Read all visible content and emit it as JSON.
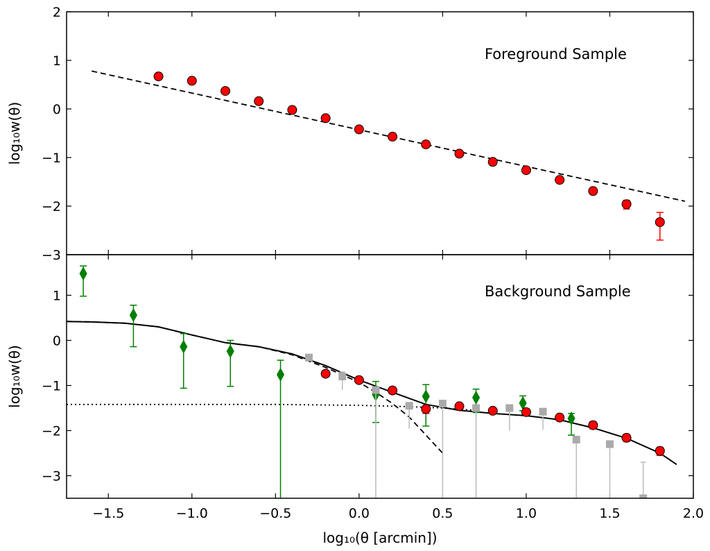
{
  "chart_data": [
    {
      "type": "scatter",
      "panel": "top",
      "annotation": "Foreground Sample",
      "xlabel": "",
      "ylabel": "log₁₀w(θ)",
      "xlim": [
        -1.75,
        2.0
      ],
      "ylim": [
        -3,
        2
      ],
      "xticks": [
        -1.5,
        -1.0,
        -0.5,
        0.0,
        0.5,
        1.0,
        1.5,
        2.0
      ],
      "yticks": [
        2,
        1,
        0,
        -1,
        -2,
        -3
      ],
      "ytick_labels": [
        "2",
        "1",
        "0",
        "−1",
        "−2",
        "−3"
      ],
      "series": [
        {
          "marker": "circle",
          "color": "#ff0000",
          "edge_color": "#000000",
          "errorbar_color": "#ff0000",
          "x": [
            -1.2,
            -1.0,
            -0.8,
            -0.6,
            -0.4,
            -0.2,
            0.0,
            0.2,
            0.4,
            0.6,
            0.8,
            1.0,
            1.2,
            1.4,
            1.6,
            1.8
          ],
          "y": [
            0.67,
            0.58,
            0.37,
            0.16,
            -0.02,
            -0.19,
            -0.42,
            -0.57,
            -0.73,
            -0.92,
            -1.09,
            -1.26,
            -1.46,
            -1.69,
            -1.96,
            -2.33
          ],
          "yerr_low": [
            0.03,
            0.03,
            0.03,
            0.03,
            0.03,
            0.03,
            0.03,
            0.03,
            0.03,
            0.03,
            0.03,
            0.03,
            0.04,
            0.06,
            0.1,
            0.37
          ],
          "yerr_high": [
            0.03,
            0.03,
            0.03,
            0.03,
            0.03,
            0.03,
            0.03,
            0.03,
            0.03,
            0.03,
            0.03,
            0.03,
            0.04,
            0.05,
            0.08,
            0.2
          ]
        }
      ],
      "lines": [
        {
          "style": "dashed",
          "color": "#000000",
          "x": [
            -1.6,
            1.95
          ],
          "y": [
            0.78,
            -1.9
          ]
        }
      ]
    },
    {
      "type": "scatter",
      "panel": "bottom",
      "annotation": "Background Sample",
      "xlabel": "log₁₀(θ [arcmin])",
      "ylabel": "log₁₀w(θ)",
      "xlim": [
        -1.75,
        2.0
      ],
      "ylim": [
        -3.5,
        1.9
      ],
      "xticks": [
        -1.5,
        -1.0,
        -0.5,
        0.0,
        0.5,
        1.0,
        1.5,
        2.0
      ],
      "xtick_labels": [
        "−1.5",
        "−1.0",
        "−0.5",
        "0.0",
        "0.5",
        "1.0",
        "1.5",
        "2.0"
      ],
      "yticks": [
        1,
        0,
        -1,
        -2,
        -3
      ],
      "ytick_labels": [
        "1",
        "0",
        "−1",
        "−2",
        "−3"
      ],
      "series": [
        {
          "marker": "diamond",
          "color": "#007f00",
          "errorbar_color": "#007f00",
          "x": [
            -1.65,
            -1.35,
            -1.05,
            -0.77,
            -0.47,
            0.1,
            0.4,
            0.7,
            0.98,
            1.27
          ],
          "y": [
            1.48,
            0.56,
            -0.14,
            -0.24,
            -0.76,
            -1.2,
            -1.24,
            -1.27,
            -1.39,
            -1.73
          ],
          "yerr_low": [
            0.5,
            0.7,
            0.92,
            0.78,
            3.0,
            0.62,
            0.66,
            0.33,
            0.17,
            0.37
          ],
          "yerr_high": [
            0.17,
            0.22,
            0.29,
            0.24,
            0.32,
            0.29,
            0.26,
            0.19,
            0.16,
            0.11
          ]
        },
        {
          "marker": "square",
          "color": "#aaaaaa",
          "errorbar_color": "#bbbbbb",
          "x": [
            -0.3,
            -0.1,
            0.1,
            0.3,
            0.5,
            0.7,
            0.9,
            1.1,
            1.3,
            1.5,
            1.7
          ],
          "y": [
            -0.38,
            -0.8,
            -1.1,
            -1.45,
            -1.4,
            -1.5,
            -1.5,
            -1.58,
            -2.2,
            -2.3,
            -3.5
          ],
          "yerr_low": [
            0.05,
            0.3,
            2.4,
            0.5,
            2.1,
            2.0,
            0.5,
            0.4,
            1.3,
            1.2,
            0.0
          ],
          "yerr_high": [
            0.05,
            0.1,
            0.05,
            0.05,
            0.05,
            0.05,
            0.05,
            0.05,
            0.05,
            0.05,
            0.8
          ]
        },
        {
          "marker": "circle",
          "color": "#ff0000",
          "edge_color": "#000000",
          "errorbar_color": "#ff0000",
          "x": [
            -0.2,
            0.0,
            0.2,
            0.4,
            0.6,
            0.8,
            1.0,
            1.2,
            1.4,
            1.6,
            1.8
          ],
          "y": [
            -0.74,
            -0.88,
            -1.11,
            -1.52,
            -1.46,
            -1.56,
            -1.59,
            -1.71,
            -1.88,
            -2.16,
            -2.45
          ],
          "yerr_low": [
            0.05,
            0.05,
            0.05,
            0.1,
            0.05,
            0.05,
            0.05,
            0.05,
            0.08,
            0.08,
            0.1
          ],
          "yerr_high": [
            0.05,
            0.05,
            0.05,
            0.05,
            0.05,
            0.05,
            0.05,
            0.05,
            0.08,
            0.08,
            0.08
          ]
        }
      ],
      "lines": [
        {
          "style": "solid",
          "color": "#000000",
          "x": [
            -1.75,
            -1.6,
            -1.4,
            -1.2,
            -1.0,
            -0.8,
            -0.6,
            -0.4,
            -0.2,
            0.0,
            0.2,
            0.4,
            0.6,
            0.8,
            1.0,
            1.2,
            1.4,
            1.6,
            1.8,
            1.9
          ],
          "y": [
            0.42,
            0.41,
            0.38,
            0.3,
            0.12,
            -0.05,
            -0.14,
            -0.3,
            -0.56,
            -0.88,
            -1.15,
            -1.42,
            -1.55,
            -1.62,
            -1.67,
            -1.76,
            -1.94,
            -2.17,
            -2.5,
            -2.75
          ]
        },
        {
          "style": "dashed",
          "color": "#000000",
          "x": [
            -1.75,
            -1.6,
            -1.4,
            -1.2,
            -1.0,
            -0.8,
            -0.6,
            -0.4,
            -0.2,
            0.0,
            0.1,
            0.2,
            0.3,
            0.4,
            0.5
          ],
          "y": [
            0.42,
            0.41,
            0.38,
            0.3,
            0.12,
            -0.05,
            -0.14,
            -0.32,
            -0.6,
            -0.93,
            -1.15,
            -1.4,
            -1.7,
            -2.1,
            -2.5
          ]
        },
        {
          "style": "dotted",
          "color": "#000000",
          "x": [
            -1.75,
            -1.0,
            -0.5,
            0.0,
            0.3,
            0.5,
            0.7
          ],
          "y": [
            -1.42,
            -1.42,
            -1.42,
            -1.44,
            -1.47,
            -1.5,
            -1.55
          ]
        }
      ]
    }
  ]
}
